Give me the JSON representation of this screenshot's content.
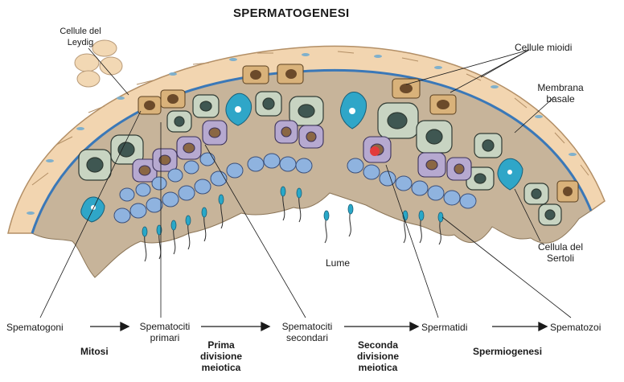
{
  "title": "SPERMATOGENESI",
  "labels": {
    "leydig": [
      "Cellule del",
      "Leydig"
    ],
    "mioidi": "Cellule mioidi",
    "membrana": [
      "Membrana",
      "basale"
    ],
    "sertoli": [
      "Cellula del",
      "Sertoli"
    ],
    "lume": "Lume"
  },
  "stages": [
    {
      "name": "Spematogoni"
    },
    {
      "name": "Spematociti primari"
    },
    {
      "name": "Spematociti secondari"
    },
    {
      "name": "Spermatidi"
    },
    {
      "name": "Spematozoi"
    }
  ],
  "stage_lines": {
    "primari": [
      "Spematociti",
      "primari"
    ],
    "secondari": [
      "Spematociti",
      "secondari"
    ]
  },
  "processes": {
    "mitosi": "Mitosi",
    "prima": [
      "Prima",
      "divisione",
      "meiotica"
    ],
    "seconda": [
      "Seconda",
      "divisione",
      "meiotica"
    ],
    "spermio": "Spermiogenesi"
  },
  "colors": {
    "tubule": "#c7b49a",
    "myoid": "#f2d5b0",
    "membrane": "#3a78b8",
    "spermatozoa": "#29a8c8",
    "sertoli_nucleus": "#2fa6c8",
    "primary": "#b6a9d0",
    "secondary": "#c8d4c2",
    "spermatid": "#8fb3df",
    "pointer": "#e23b3b"
  }
}
